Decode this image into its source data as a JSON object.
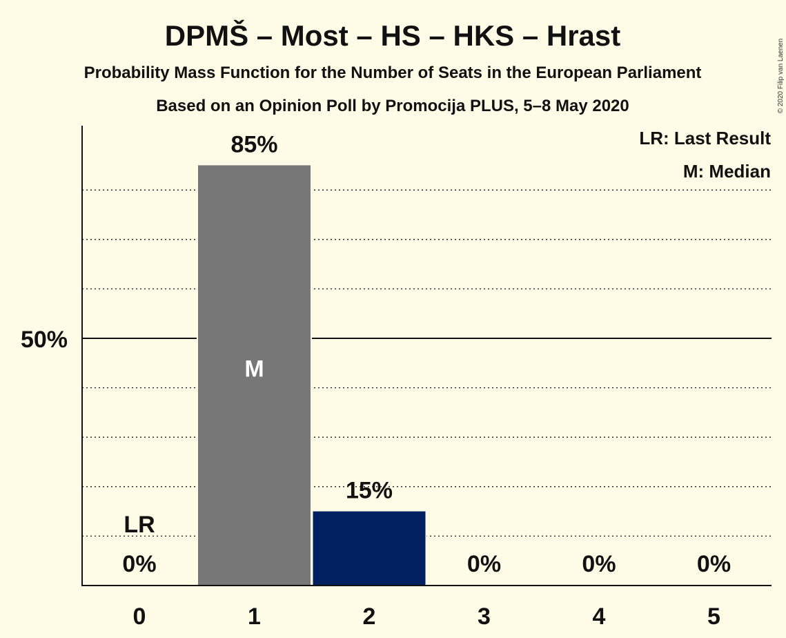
{
  "header": {
    "title": "DPMŠ – Most – HS – HKS – Hrast",
    "subtitle": "Probability Mass Function for the Number of Seats in the European Parliament",
    "source": "Based on an Opinion Poll by Promocija PLUS, 5–8 May 2020",
    "copyright": "© 2020 Filip van Laenen"
  },
  "legend": {
    "last_result": "LR: Last Result",
    "median": "M: Median"
  },
  "chart_data": {
    "type": "bar",
    "categories": [
      "0",
      "1",
      "2",
      "3",
      "4",
      "5"
    ],
    "values": [
      0,
      85,
      15,
      0,
      0,
      0
    ],
    "value_labels": [
      "0%",
      "85%",
      "15%",
      "0%",
      "0%",
      "0%"
    ],
    "bar_colors": [
      "#777777",
      "#777777",
      "#002060",
      "#777777",
      "#777777",
      "#777777"
    ],
    "ylim": [
      0,
      100
    ],
    "ytick_label": "50%",
    "ytick_value": 50,
    "gridline_values": [
      10,
      20,
      30,
      40,
      60,
      70,
      80
    ],
    "last_result_index": 0,
    "last_result_label": "LR",
    "median_index": 1,
    "median_label": "M"
  }
}
